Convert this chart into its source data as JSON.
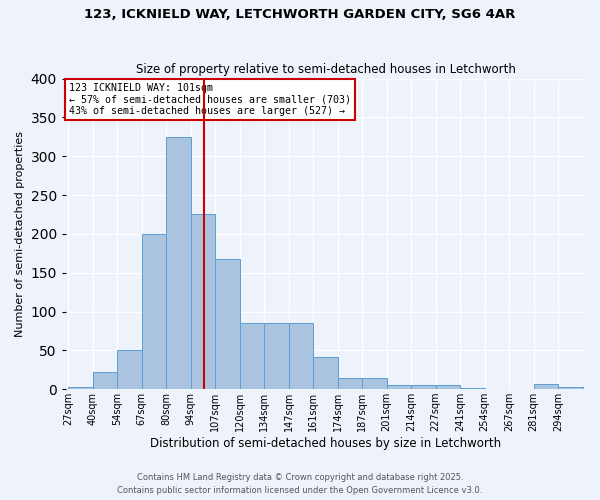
{
  "title_line1": "123, ICKNIELD WAY, LETCHWORTH GARDEN CITY, SG6 4AR",
  "title_line2": "Size of property relative to semi-detached houses in Letchworth",
  "bar_labels": [
    "27sqm",
    "40sqm",
    "54sqm",
    "67sqm",
    "80sqm",
    "94sqm",
    "107sqm",
    "120sqm",
    "134sqm",
    "147sqm",
    "161sqm",
    "174sqm",
    "187sqm",
    "201sqm",
    "214sqm",
    "227sqm",
    "241sqm",
    "254sqm",
    "267sqm",
    "281sqm",
    "294sqm"
  ],
  "bar_values": [
    3,
    22,
    51,
    200,
    325,
    225,
    168,
    85,
    85,
    85,
    42,
    15,
    15,
    5,
    5,
    5,
    1,
    0,
    0,
    7,
    3
  ],
  "bar_color": "#aac4e0",
  "bar_edgecolor": "#5a9fd4",
  "vline_color": "#cc0000",
  "xlabel": "Distribution of semi-detached houses by size in Letchworth",
  "ylabel": "Number of semi-detached properties",
  "annotation_title": "123 ICKNIELD WAY: 101sqm",
  "annotation_line2": "← 57% of semi-detached houses are smaller (703)",
  "annotation_line3": "43% of semi-detached houses are larger (527) →",
  "annotation_box_color": "#ffffff",
  "annotation_box_edgecolor": "#cc0000",
  "footer_line1": "Contains HM Land Registry data © Crown copyright and database right 2025.",
  "footer_line2": "Contains public sector information licensed under the Open Government Licence v3.0.",
  "ylim": [
    0,
    400
  ],
  "background_color": "#eef2fa",
  "grid_color": "#ffffff",
  "yticks": [
    0,
    50,
    100,
    150,
    200,
    250,
    300,
    350,
    400
  ]
}
